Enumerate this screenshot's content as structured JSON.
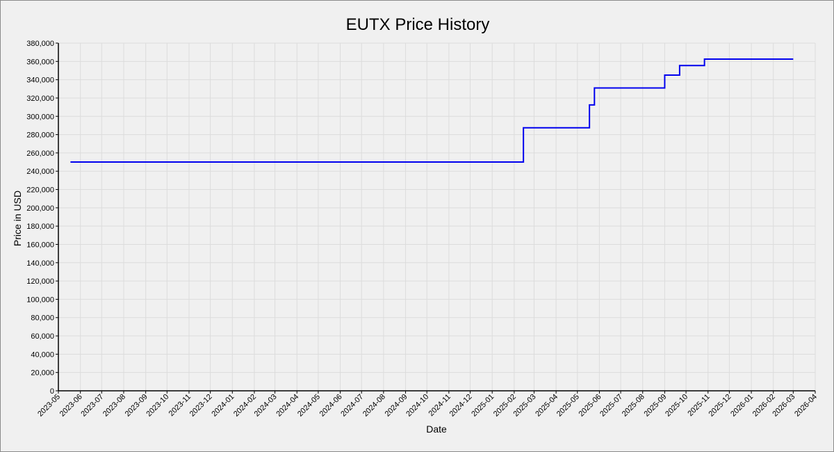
{
  "chart_data": {
    "type": "line",
    "title": "EUTX Price History",
    "xlabel": "Date",
    "ylabel": "Price in USD",
    "grid": true,
    "legend": "none",
    "xlim": [
      "2023-05-01",
      "2026-04-01"
    ],
    "ylim": [
      0,
      380000
    ],
    "x_ticks": [
      "2023-05",
      "2023-06",
      "2023-07",
      "2023-08",
      "2023-09",
      "2023-10",
      "2023-11",
      "2023-12",
      "2024-01",
      "2024-02",
      "2024-03",
      "2024-04",
      "2024-05",
      "2024-06",
      "2024-07",
      "2024-08",
      "2024-09",
      "2024-10",
      "2024-11",
      "2024-12",
      "2025-01",
      "2025-02",
      "2025-03",
      "2025-04",
      "2025-05",
      "2025-06",
      "2025-07",
      "2025-08",
      "2025-09",
      "2025-10",
      "2025-11",
      "2025-12",
      "2026-01",
      "2026-02",
      "2026-03",
      "2026-04"
    ],
    "y_ticks": [
      "0",
      "20,000",
      "40,000",
      "60,000",
      "80,000",
      "100,000",
      "120,000",
      "140,000",
      "160,000",
      "180,000",
      "200,000",
      "220,000",
      "240,000",
      "260,000",
      "280,000",
      "300,000",
      "320,000",
      "340,000",
      "360,000",
      "380,000"
    ],
    "series": [
      {
        "color": "#0000ee",
        "step": "post",
        "points": [
          [
            "2023-05-18",
            250000
          ],
          [
            "2025-02-14",
            287500
          ],
          [
            "2025-05-18",
            312500
          ],
          [
            "2025-05-25",
            331000
          ],
          [
            "2025-09-01",
            345000
          ],
          [
            "2025-09-22",
            355500
          ],
          [
            "2025-10-27",
            362500
          ],
          [
            "2026-03-01",
            362500
          ]
        ]
      }
    ]
  }
}
